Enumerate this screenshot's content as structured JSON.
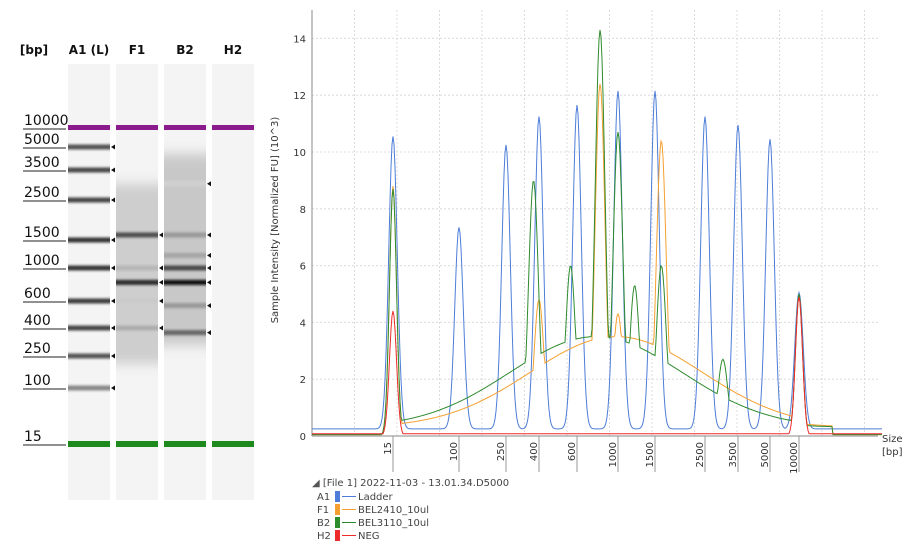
{
  "gel": {
    "unit": "[bp]",
    "lanes": [
      "A1 (L)",
      "F1",
      "B2",
      "H2"
    ],
    "ladder_labels": [
      {
        "label": "10000",
        "bp": 10000
      },
      {
        "label": "5000",
        "bp": 5000
      },
      {
        "label": "3500",
        "bp": 3500
      },
      {
        "label": "2500",
        "bp": 2500
      },
      {
        "label": "1500",
        "bp": 1500
      },
      {
        "label": "1000",
        "bp": 1000
      },
      {
        "label": "600",
        "bp": 600
      },
      {
        "label": "400",
        "bp": 400
      },
      {
        "label": "250",
        "bp": 250
      },
      {
        "label": "100",
        "bp": 100
      },
      {
        "label": "15",
        "bp": 15
      }
    ],
    "marker_colors": {
      "upper": "#8b1a8c",
      "lower": "#1e8a1e"
    }
  },
  "chart_data": {
    "type": "line",
    "ylabel": "Sample Intensity [Normalized FU] (10^3)",
    "xlabel": "Size\n[bp]",
    "ylim": [
      0,
      15
    ],
    "yticks": [
      0,
      2,
      4,
      6,
      8,
      10,
      12,
      14
    ],
    "xticks": [
      "15",
      "100",
      "250",
      "400",
      "600",
      "1000",
      "1500",
      "2500",
      "3500",
      "5000",
      "10000"
    ],
    "grid": true,
    "series": [
      {
        "name": "Ladder",
        "code": "A1",
        "color": "#4d7dd8",
        "peaks": [
          [
            15,
            10.3
          ],
          [
            100,
            7.1
          ],
          [
            250,
            10.0
          ],
          [
            400,
            11.0
          ],
          [
            600,
            11.4
          ],
          [
            1000,
            11.9
          ],
          [
            1500,
            11.9
          ],
          [
            2500,
            11.0
          ],
          [
            3500,
            10.7
          ],
          [
            5000,
            10.2
          ],
          [
            10000,
            4.8
          ]
        ]
      },
      {
        "name": "BEL2410_10ul",
        "code": "F1",
        "color": "#f5a030",
        "peaks": [
          [
            15,
            8.8
          ],
          [
            400,
            4.8
          ],
          [
            600,
            3.1
          ],
          [
            800,
            12.4
          ],
          [
            1000,
            4.3
          ],
          [
            1600,
            10.4
          ],
          [
            10000,
            4.9
          ]
        ]
      },
      {
        "name": "BEL3110_10ul",
        "code": "B2",
        "color": "#2e8b2e",
        "peaks": [
          [
            15,
            8.7
          ],
          [
            370,
            9.0
          ],
          [
            560,
            6.0
          ],
          [
            800,
            14.3
          ],
          [
            1000,
            10.7
          ],
          [
            1200,
            5.3
          ],
          [
            1600,
            6.0
          ],
          [
            3000,
            2.7
          ],
          [
            10000,
            5.0
          ]
        ]
      },
      {
        "name": "NEG",
        "code": "H2",
        "color": "#ee2b2b",
        "peaks": [
          [
            15,
            4.4
          ],
          [
            10000,
            4.9
          ]
        ]
      }
    ]
  },
  "legend": {
    "file_label": "[File 1] 2022-11-03 - 13.01.34.D5000"
  }
}
